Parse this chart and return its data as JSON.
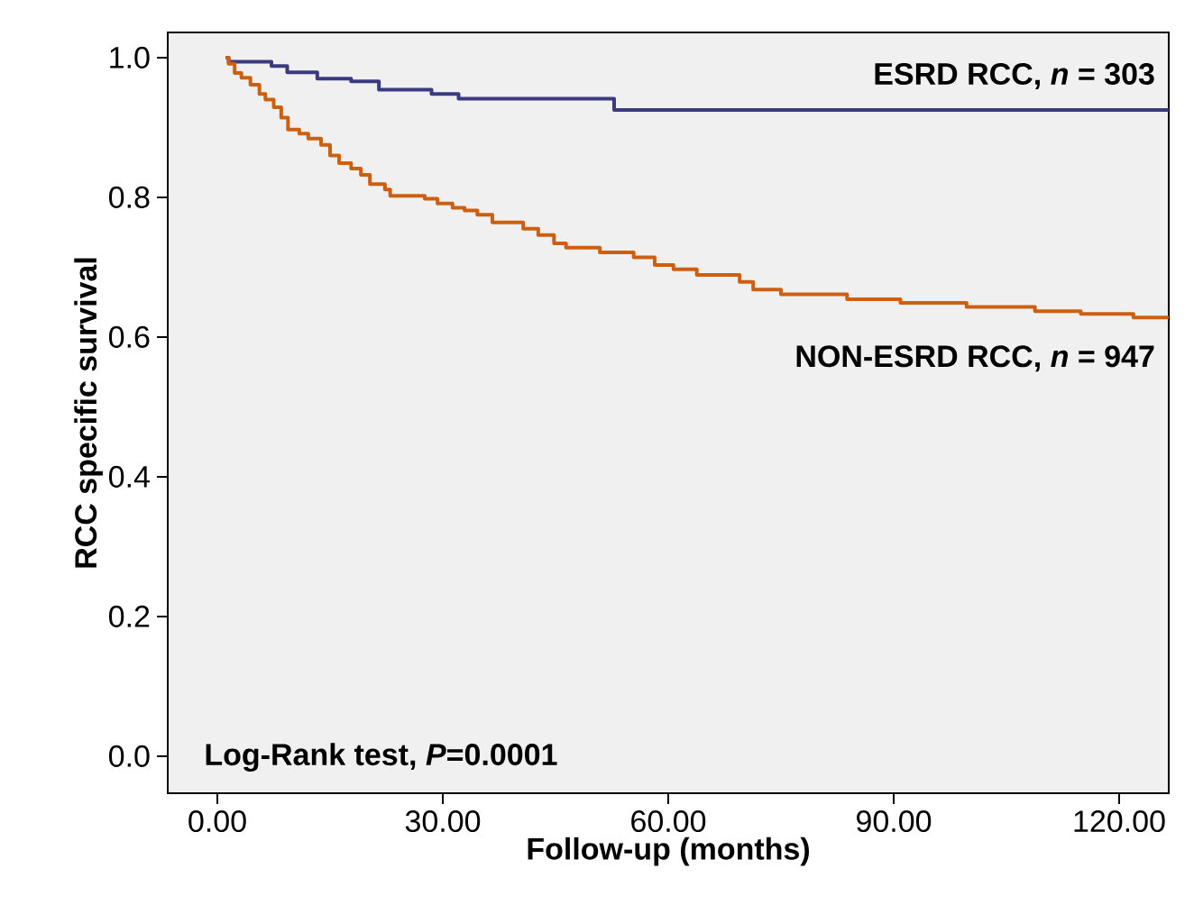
{
  "chart_data": {
    "type": "step",
    "xlabel": "Follow-up (months)",
    "ylabel": "RCC specific survival",
    "xlim": [
      -6.6,
      126.6
    ],
    "ylim": [
      -0.053,
      1.036
    ],
    "xticks": [
      {
        "value": 0,
        "label": "0.00"
      },
      {
        "value": 30,
        "label": "30.00"
      },
      {
        "value": 60,
        "label": "60.00"
      },
      {
        "value": 90,
        "label": "90.00"
      },
      {
        "value": 120,
        "label": "120.00"
      }
    ],
    "yticks": [
      {
        "value": 0,
        "label": "0.0"
      },
      {
        "value": 0.2,
        "label": "0.2"
      },
      {
        "value": 0.4,
        "label": "0.4"
      },
      {
        "value": 0.6,
        "label": "0.6"
      },
      {
        "value": 0.8,
        "label": "0.8"
      },
      {
        "value": 1.0,
        "label": "1.0"
      }
    ],
    "grid": false,
    "legend": false,
    "series": [
      {
        "name": "ESRD RCC, *n* = 303",
        "color": "#3a3a80",
        "x": [
          1.1,
          1.5,
          7.2,
          9.3,
          13.3,
          17.8,
          21.5,
          28.5,
          32.1,
          52.8,
          126.6
        ],
        "values": [
          1.0,
          0.994,
          0.988,
          0.979,
          0.97,
          0.966,
          0.954,
          0.948,
          0.941,
          0.925,
          0.925
        ]
      },
      {
        "name": "NON-ESRD RCC, *n* = 947",
        "color": "#cc6010",
        "x": [
          1.1,
          1.5,
          2.3,
          3.2,
          4.4,
          5.6,
          6.4,
          7.5,
          8.5,
          9.4,
          10.9,
          12.1,
          13.8,
          15.0,
          16.2,
          17.8,
          19.1,
          20.3,
          22.3,
          23.0,
          27.6,
          29.3,
          31.3,
          32.9,
          34.6,
          36.6,
          40.7,
          42.7,
          44.8,
          46.4,
          50.9,
          55.4,
          58.2,
          60.7,
          63.8,
          69.5,
          71.3,
          75.0,
          83.8,
          90.9,
          99.7,
          108.8,
          114.9,
          121.9,
          126.6
        ],
        "values": [
          1.0,
          0.991,
          0.978,
          0.971,
          0.961,
          0.948,
          0.94,
          0.929,
          0.914,
          0.897,
          0.891,
          0.884,
          0.875,
          0.86,
          0.849,
          0.841,
          0.832,
          0.819,
          0.811,
          0.802,
          0.798,
          0.791,
          0.785,
          0.781,
          0.775,
          0.764,
          0.755,
          0.746,
          0.734,
          0.728,
          0.721,
          0.714,
          0.703,
          0.697,
          0.689,
          0.679,
          0.668,
          0.661,
          0.654,
          0.649,
          0.643,
          0.637,
          0.633,
          0.628,
          0.628
        ]
      }
    ],
    "annotations": [
      "Log-Rank test, *P*=0.0001"
    ]
  }
}
